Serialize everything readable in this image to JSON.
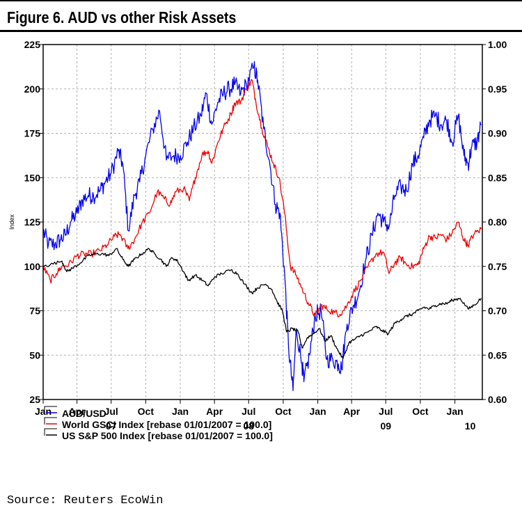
{
  "title": "Figure 6. AUD vs other Risk Assets",
  "source": "Source: Reuters EcoWin",
  "chart_data": {
    "type": "line",
    "title": "Figure 6. AUD vs other Risk Assets",
    "ylabel": "Index",
    "x_tick_labels": [
      "Jan",
      "Apr",
      "Jul",
      "Oct",
      "Jan",
      "Apr",
      "Jul",
      "Oct",
      "Jan",
      "Apr",
      "Jul",
      "Oct",
      "Jan"
    ],
    "x_year_labels": [
      "07",
      "08",
      "09",
      "10"
    ],
    "xlim": [
      "2007-01-01",
      "2010-03-15"
    ],
    "ylim_left": [
      25,
      225
    ],
    "ylim_right": [
      0.6,
      1.0
    ],
    "yticks_left": [
      "25",
      "50",
      "75",
      "100",
      "125",
      "150",
      "175",
      "200",
      "225"
    ],
    "yticks_right": [
      "0.60",
      "0.65",
      "0.70",
      "0.75",
      "0.80",
      "0.85",
      "0.90",
      "0.95",
      "1.00"
    ],
    "grid": true,
    "legend_position": "bottom-left",
    "series": [
      {
        "name": "AUD/USD",
        "axis": "right",
        "color": "#0000ee",
        "points": [
          [
            "2007-01-01",
            0.79
          ],
          [
            "2007-01-15",
            0.775
          ],
          [
            "2007-02-01",
            0.775
          ],
          [
            "2007-02-15",
            0.78
          ],
          [
            "2007-03-01",
            0.785
          ],
          [
            "2007-03-15",
            0.8
          ],
          [
            "2007-04-01",
            0.81
          ],
          [
            "2007-04-15",
            0.825
          ],
          [
            "2007-05-01",
            0.83
          ],
          [
            "2007-05-15",
            0.83
          ],
          [
            "2007-06-01",
            0.835
          ],
          [
            "2007-06-15",
            0.845
          ],
          [
            "2007-07-01",
            0.855
          ],
          [
            "2007-07-20",
            0.88
          ],
          [
            "2007-08-01",
            0.865
          ],
          [
            "2007-08-16",
            0.79
          ],
          [
            "2007-09-01",
            0.83
          ],
          [
            "2007-09-15",
            0.845
          ],
          [
            "2007-10-01",
            0.875
          ],
          [
            "2007-10-20",
            0.905
          ],
          [
            "2007-11-07",
            0.925
          ],
          [
            "2007-11-25",
            0.87
          ],
          [
            "2007-12-15",
            0.875
          ],
          [
            "2008-01-01",
            0.875
          ],
          [
            "2008-01-20",
            0.89
          ],
          [
            "2008-02-05",
            0.905
          ],
          [
            "2008-02-25",
            0.92
          ],
          [
            "2008-03-10",
            0.945
          ],
          [
            "2008-03-25",
            0.91
          ],
          [
            "2008-04-10",
            0.935
          ],
          [
            "2008-04-25",
            0.945
          ],
          [
            "2008-05-10",
            0.95
          ],
          [
            "2008-05-25",
            0.955
          ],
          [
            "2008-06-10",
            0.945
          ],
          [
            "2008-06-25",
            0.955
          ],
          [
            "2008-07-15",
            0.975
          ],
          [
            "2008-07-25",
            0.96
          ],
          [
            "2008-08-10",
            0.905
          ],
          [
            "2008-08-25",
            0.87
          ],
          [
            "2008-09-10",
            0.82
          ],
          [
            "2008-09-22",
            0.81
          ],
          [
            "2008-10-05",
            0.74
          ],
          [
            "2008-10-15",
            0.66
          ],
          [
            "2008-10-27",
            0.61
          ],
          [
            "2008-11-05",
            0.68
          ],
          [
            "2008-11-20",
            0.64
          ],
          [
            "2008-11-25",
            0.62
          ],
          [
            "2008-12-10",
            0.65
          ],
          [
            "2008-12-25",
            0.695
          ],
          [
            "2009-01-10",
            0.7
          ],
          [
            "2009-01-25",
            0.645
          ],
          [
            "2009-02-10",
            0.645
          ],
          [
            "2009-02-25",
            0.64
          ],
          [
            "2009-03-05",
            0.635
          ],
          [
            "2009-03-20",
            0.685
          ],
          [
            "2009-04-05",
            0.705
          ],
          [
            "2009-04-20",
            0.72
          ],
          [
            "2009-05-10",
            0.76
          ],
          [
            "2009-05-25",
            0.785
          ],
          [
            "2009-06-10",
            0.81
          ],
          [
            "2009-06-25",
            0.8
          ],
          [
            "2009-07-10",
            0.795
          ],
          [
            "2009-07-25",
            0.83
          ],
          [
            "2009-08-10",
            0.84
          ],
          [
            "2009-08-25",
            0.835
          ],
          [
            "2009-09-10",
            0.865
          ],
          [
            "2009-09-25",
            0.875
          ],
          [
            "2009-10-10",
            0.895
          ],
          [
            "2009-10-25",
            0.915
          ],
          [
            "2009-11-10",
            0.92
          ],
          [
            "2009-11-25",
            0.91
          ],
          [
            "2009-12-10",
            0.915
          ],
          [
            "2009-12-25",
            0.89
          ],
          [
            "2010-01-10",
            0.92
          ],
          [
            "2010-01-25",
            0.875
          ],
          [
            "2010-02-05",
            0.865
          ],
          [
            "2010-02-15",
            0.885
          ],
          [
            "2010-03-01",
            0.89
          ],
          [
            "2010-03-12",
            0.91
          ]
        ]
      },
      {
        "name": "World GSCI Index [rebase 01/01/2007 = 100.0]",
        "axis": "left",
        "color": "#ee0000",
        "points": [
          [
            "2007-01-01",
            100
          ],
          [
            "2007-01-20",
            92
          ],
          [
            "2007-02-05",
            96
          ],
          [
            "2007-02-20",
            100
          ],
          [
            "2007-03-10",
            101
          ],
          [
            "2007-04-01",
            106
          ],
          [
            "2007-04-20",
            107
          ],
          [
            "2007-05-10",
            107
          ],
          [
            "2007-06-01",
            109
          ],
          [
            "2007-06-20",
            112
          ],
          [
            "2007-07-10",
            117
          ],
          [
            "2007-07-25",
            118
          ],
          [
            "2007-08-15",
            110
          ],
          [
            "2007-09-01",
            115
          ],
          [
            "2007-09-20",
            124
          ],
          [
            "2007-10-10",
            130
          ],
          [
            "2007-11-01",
            142
          ],
          [
            "2007-11-20",
            138
          ],
          [
            "2007-12-05",
            135
          ],
          [
            "2007-12-20",
            142
          ],
          [
            "2008-01-10",
            144
          ],
          [
            "2008-01-25",
            137
          ],
          [
            "2008-02-10",
            150
          ],
          [
            "2008-02-28",
            163
          ],
          [
            "2008-03-15",
            165
          ],
          [
            "2008-03-25",
            158
          ],
          [
            "2008-04-10",
            170
          ],
          [
            "2008-04-25",
            178
          ],
          [
            "2008-05-15",
            186
          ],
          [
            "2008-05-25",
            192
          ],
          [
            "2008-06-10",
            193
          ],
          [
            "2008-06-25",
            200
          ],
          [
            "2008-07-10",
            205
          ],
          [
            "2008-07-20",
            193
          ],
          [
            "2008-08-05",
            178
          ],
          [
            "2008-08-20",
            168
          ],
          [
            "2008-09-05",
            158
          ],
          [
            "2008-09-20",
            150
          ],
          [
            "2008-10-05",
            130
          ],
          [
            "2008-10-20",
            100
          ],
          [
            "2008-11-05",
            95
          ],
          [
            "2008-11-25",
            85
          ],
          [
            "2008-12-10",
            78
          ],
          [
            "2008-12-25",
            72
          ],
          [
            "2009-01-10",
            78
          ],
          [
            "2009-01-25",
            76
          ],
          [
            "2009-02-15",
            74
          ],
          [
            "2009-03-01",
            73
          ],
          [
            "2009-03-20",
            78
          ],
          [
            "2009-04-05",
            85
          ],
          [
            "2009-04-25",
            92
          ],
          [
            "2009-05-15",
            100
          ],
          [
            "2009-06-05",
            107
          ],
          [
            "2009-06-25",
            108
          ],
          [
            "2009-07-10",
            96
          ],
          [
            "2009-07-25",
            102
          ],
          [
            "2009-08-10",
            105
          ],
          [
            "2009-08-25",
            101
          ],
          [
            "2009-09-10",
            100
          ],
          [
            "2009-09-25",
            101
          ],
          [
            "2009-10-10",
            110
          ],
          [
            "2009-10-25",
            117
          ],
          [
            "2009-11-10",
            116
          ],
          [
            "2009-11-25",
            118
          ],
          [
            "2009-12-10",
            115
          ],
          [
            "2009-12-25",
            119
          ],
          [
            "2010-01-10",
            125
          ],
          [
            "2010-01-25",
            115
          ],
          [
            "2010-02-05",
            112
          ],
          [
            "2010-02-20",
            118
          ],
          [
            "2010-03-12",
            121
          ]
        ]
      },
      {
        "name": "US S&P 500 Index [rebase 01/01/2007 = 100.0]",
        "axis": "left",
        "color": "#000000",
        "points": [
          [
            "2007-01-01",
            100
          ],
          [
            "2007-01-20",
            101
          ],
          [
            "2007-02-20",
            103
          ],
          [
            "2007-03-05",
            97
          ],
          [
            "2007-03-20",
            99
          ],
          [
            "2007-04-10",
            102
          ],
          [
            "2007-05-01",
            106
          ],
          [
            "2007-05-20",
            107
          ],
          [
            "2007-06-10",
            107
          ],
          [
            "2007-06-25",
            106
          ],
          [
            "2007-07-15",
            110
          ],
          [
            "2007-08-01",
            104
          ],
          [
            "2007-08-16",
            100
          ],
          [
            "2007-09-01",
            104
          ],
          [
            "2007-09-20",
            107
          ],
          [
            "2007-10-10",
            110
          ],
          [
            "2007-10-25",
            107
          ],
          [
            "2007-11-10",
            104
          ],
          [
            "2007-11-25",
            100
          ],
          [
            "2007-12-10",
            105
          ],
          [
            "2007-12-25",
            103
          ],
          [
            "2008-01-10",
            97
          ],
          [
            "2008-01-22",
            92
          ],
          [
            "2008-02-10",
            95
          ],
          [
            "2008-03-01",
            92
          ],
          [
            "2008-03-15",
            89
          ],
          [
            "2008-04-01",
            94
          ],
          [
            "2008-04-20",
            96
          ],
          [
            "2008-05-15",
            98
          ],
          [
            "2008-06-01",
            96
          ],
          [
            "2008-06-20",
            90
          ],
          [
            "2008-07-10",
            85
          ],
          [
            "2008-07-25",
            88
          ],
          [
            "2008-08-15",
            90
          ],
          [
            "2008-09-01",
            87
          ],
          [
            "2008-09-15",
            80
          ],
          [
            "2008-09-29",
            75
          ],
          [
            "2008-10-10",
            63
          ],
          [
            "2008-10-25",
            65
          ],
          [
            "2008-11-10",
            63
          ],
          [
            "2008-11-20",
            54
          ],
          [
            "2008-12-05",
            60
          ],
          [
            "2008-12-20",
            62
          ],
          [
            "2009-01-05",
            65
          ],
          [
            "2009-01-20",
            58
          ],
          [
            "2009-02-05",
            61
          ],
          [
            "2009-02-20",
            54
          ],
          [
            "2009-03-09",
            48
          ],
          [
            "2009-03-25",
            57
          ],
          [
            "2009-04-10",
            59
          ],
          [
            "2009-04-25",
            61
          ],
          [
            "2009-05-15",
            63
          ],
          [
            "2009-06-05",
            66
          ],
          [
            "2009-06-20",
            64
          ],
          [
            "2009-07-08",
            62
          ],
          [
            "2009-07-25",
            68
          ],
          [
            "2009-08-10",
            70
          ],
          [
            "2009-08-25",
            72
          ],
          [
            "2009-09-10",
            73
          ],
          [
            "2009-09-25",
            75
          ],
          [
            "2009-10-10",
            77
          ],
          [
            "2009-10-25",
            76
          ],
          [
            "2009-11-10",
            78
          ],
          [
            "2009-11-25",
            79
          ],
          [
            "2009-12-10",
            79
          ],
          [
            "2009-12-25",
            81
          ],
          [
            "2010-01-15",
            82
          ],
          [
            "2010-02-05",
            76
          ],
          [
            "2010-02-20",
            78
          ],
          [
            "2010-03-12",
            82
          ]
        ]
      }
    ]
  }
}
